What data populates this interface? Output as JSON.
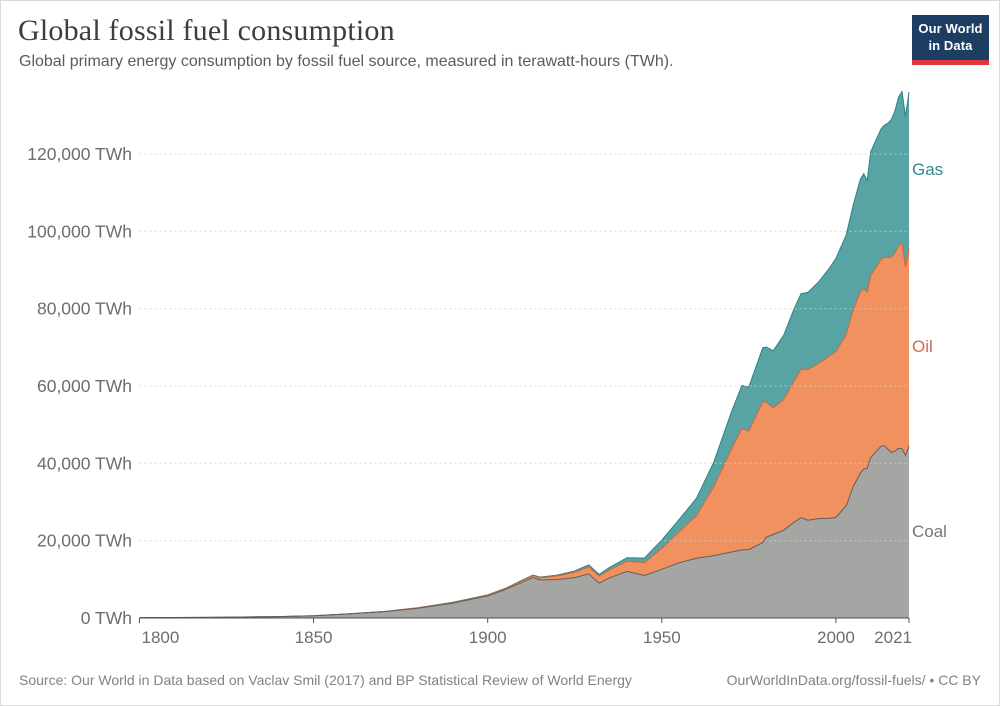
{
  "header": {
    "title": "Global fossil fuel consumption",
    "subtitle": "Global primary energy consumption by fossil fuel source, measured in terawatt-hours (TWh).",
    "logo": {
      "line1": "Our World",
      "line2": "in Data",
      "bg_color": "#1d3d63",
      "accent_color": "#e0373f",
      "text_color": "#ffffff"
    }
  },
  "footer": {
    "source": "Source: Our World in Data based on Vaclav Smil (2017) and BP Statistical Review of World Energy",
    "link": "OurWorldInData.org/fossil-fuels/ • CC BY"
  },
  "chart_data": {
    "type": "area",
    "stacked": true,
    "title": "Global fossil fuel consumption",
    "xlabel": "",
    "ylabel": "",
    "unit": "TWh",
    "grid": true,
    "legend_position": "right-inline",
    "background": "#ffffff",
    "xlim": [
      1800,
      2021
    ],
    "ylim": [
      0,
      138000
    ],
    "x": [
      1800,
      1820,
      1840,
      1850,
      1860,
      1870,
      1880,
      1890,
      1900,
      1905,
      1910,
      1913,
      1915,
      1920,
      1925,
      1929,
      1932,
      1935,
      1940,
      1945,
      1950,
      1955,
      1960,
      1965,
      1970,
      1973,
      1975,
      1979,
      1980,
      1982,
      1985,
      1988,
      1990,
      1992,
      1995,
      1998,
      2000,
      2003,
      2005,
      2007,
      2008,
      2009,
      2010,
      2012,
      2013,
      2014,
      2015,
      2016,
      2017,
      2018,
      2019,
      2020,
      2021
    ],
    "series": [
      {
        "name": "Coal",
        "fill": "#a5a5a3",
        "stroke": "#5f5f5d",
        "label_color": "#777775",
        "values": [
          97,
          153,
          356,
          569,
          1061,
          1642,
          2542,
          3856,
          5728,
          7319,
          9280,
          10466,
          9840,
          9963,
          10440,
          11400,
          9000,
          10390,
          12048,
          11000,
          12603,
          14300,
          15442,
          16140,
          17064,
          17600,
          17700,
          19500,
          20858,
          21600,
          22700,
          24800,
          25905,
          25300,
          25700,
          25800,
          25982,
          29100,
          34000,
          37500,
          38500,
          38700,
          41485,
          43500,
          44400,
          44500,
          43600,
          42800,
          43200,
          43900,
          43750,
          42060,
          44473
        ]
      },
      {
        "name": "Oil",
        "fill": "#f0915f",
        "stroke": "#d0683a",
        "label_color": "#d2694b",
        "values": [
          0,
          0,
          0,
          0,
          6,
          11,
          86,
          128,
          181,
          250,
          397,
          465,
          520,
          889,
          1370,
          1800,
          1750,
          2040,
          2654,
          3300,
          5444,
          8000,
          11096,
          17994,
          26568,
          31430,
          30610,
          36500,
          35000,
          32800,
          33800,
          36500,
          38474,
          39000,
          40100,
          41900,
          42875,
          44300,
          45700,
          46900,
          46700,
          45600,
          47101,
          47900,
          48300,
          48800,
          49600,
          50500,
          51300,
          52300,
          53080,
          48710,
          51170
        ]
      },
      {
        "name": "Gas",
        "fill": "#58a4a5",
        "stroke": "#2f8184",
        "label_color": "#2d8a8f",
        "values": [
          0,
          0,
          0,
          0,
          0,
          0,
          23,
          72,
          64,
          90,
          147,
          190,
          210,
          232,
          340,
          560,
          520,
          650,
          883,
          1200,
          2092,
          3200,
          4472,
          6304,
          9614,
          11100,
          11440,
          13900,
          14240,
          14700,
          16600,
          18700,
          19484,
          19900,
          21100,
          22600,
          24113,
          25700,
          27200,
          29000,
          29700,
          28900,
          31954,
          33200,
          33800,
          34200,
          34800,
          35700,
          36800,
          38500,
          39330,
          38910,
          40375
        ]
      }
    ],
    "xticks": {
      "values": [
        1800,
        1850,
        1900,
        1950,
        2000,
        2021
      ],
      "labels": [
        "1800",
        "1850",
        "1900",
        "1950",
        "2000",
        "2021"
      ]
    },
    "yticks": {
      "values": [
        0,
        20000,
        40000,
        60000,
        80000,
        100000,
        120000
      ],
      "labels": [
        "0 TWh",
        "20,000 TWh",
        "40,000 TWh",
        "60,000 TWh",
        "80,000 TWh",
        "100,000 TWh",
        "120,000 TWh"
      ]
    },
    "axis_color": "#4f4f4f",
    "tick_label_color": "#6d6d6d",
    "gridline_color": "#cfcfcf"
  }
}
